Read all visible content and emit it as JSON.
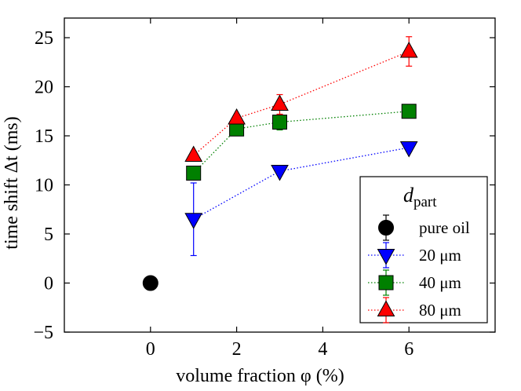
{
  "chart_data": {
    "type": "scatter",
    "xlabel": "volume fraction φ (%)",
    "ylabel": "time shift Δt (ms)",
    "xlim": [
      -2,
      8
    ],
    "ylim": [
      -5,
      27
    ],
    "xticks": [
      0,
      2,
      4,
      6
    ],
    "yticks": [
      -5,
      0,
      5,
      10,
      15,
      20,
      25
    ],
    "xtick_labels": [
      "0",
      "2",
      "4",
      "6"
    ],
    "ytick_labels": [
      "−5",
      "0",
      "5",
      "10",
      "15",
      "20",
      "25"
    ],
    "grid": false,
    "legend": {
      "title_main": "d",
      "title_sub": "part",
      "position": "lower-right"
    },
    "series": [
      {
        "name": "pure oil",
        "marker": "circle",
        "color": "#000000",
        "line": false,
        "x": [
          0
        ],
        "y": [
          0
        ],
        "err": [
          0
        ]
      },
      {
        "name": "20 μm",
        "marker": "triangle-down",
        "color": "#0000ff",
        "line": true,
        "x": [
          1,
          3,
          6
        ],
        "y": [
          6.5,
          11.4,
          13.8
        ],
        "err": [
          3.7,
          0.3,
          0.4
        ]
      },
      {
        "name": "40 μm",
        "marker": "square",
        "color": "#008000",
        "line": true,
        "x": [
          1,
          2,
          3,
          6
        ],
        "y": [
          11.2,
          15.7,
          16.4,
          17.5
        ],
        "err": [
          0.3,
          0.3,
          0.8,
          0.3
        ]
      },
      {
        "name": "80 μm",
        "marker": "triangle-up",
        "color": "#ff0000",
        "line": true,
        "x": [
          1,
          2,
          3,
          6
        ],
        "y": [
          13.0,
          16.8,
          18.2,
          23.6
        ],
        "err": [
          0.4,
          0.3,
          1.0,
          1.5
        ]
      }
    ]
  }
}
